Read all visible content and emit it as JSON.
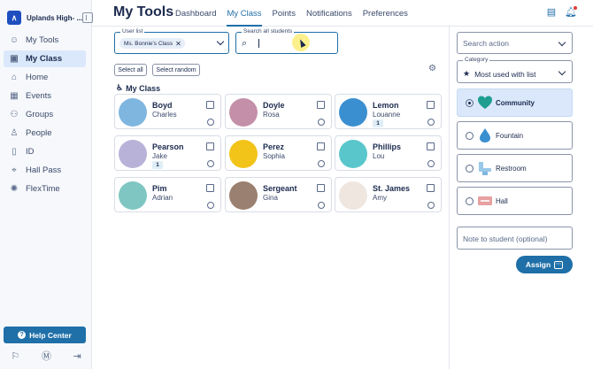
{
  "sidebar": {
    "school_name": "Uplands High- ...",
    "items": [
      {
        "label": "My Tools",
        "icon": "smiley-icon",
        "active": false
      },
      {
        "label": "My Class",
        "icon": "id-card-icon",
        "active": true
      },
      {
        "label": "Home",
        "icon": "home-icon",
        "active": false
      },
      {
        "label": "Events",
        "icon": "calendar-icon",
        "active": false
      },
      {
        "label": "Groups",
        "icon": "group-icon",
        "active": false
      },
      {
        "label": "People",
        "icon": "person-icon",
        "active": false
      },
      {
        "label": "ID",
        "icon": "id-icon",
        "active": false
      },
      {
        "label": "Hall Pass",
        "icon": "pass-icon",
        "active": false
      },
      {
        "label": "FlexTime",
        "icon": "flex-icon",
        "active": false
      }
    ],
    "help_label": "Help Center"
  },
  "header": {
    "title": "My Tools",
    "tabs": [
      "Dashboard",
      "My Class",
      "Points",
      "Notifications",
      "Preferences"
    ],
    "active_tab": "My Class"
  },
  "filters": {
    "user_list_legend": "User list",
    "user_list_chip": "Ms. Bonnie's Class",
    "search_legend": "Search all students",
    "select_all": "Select all",
    "select_random": "Select random"
  },
  "section_title": "My Class",
  "students": [
    {
      "last": "Boyd",
      "first": "Charles",
      "count": "",
      "avatar_color": "#7fb6e0"
    },
    {
      "last": "Doyle",
      "first": "Rosa",
      "count": "",
      "avatar_color": "#c48fa8"
    },
    {
      "last": "Lemon",
      "first": "Louanne",
      "count": "1",
      "avatar_color": "#3a8fd0"
    },
    {
      "last": "Pearson",
      "first": "Jake",
      "count": "1",
      "avatar_color": "#b9b2d8"
    },
    {
      "last": "Perez",
      "first": "Sophia",
      "count": "",
      "avatar_color": "#f2c318"
    },
    {
      "last": "Phillips",
      "first": "Lou",
      "count": "",
      "avatar_color": "#59c6cc"
    },
    {
      "last": "Pim",
      "first": "Adrian",
      "count": "",
      "avatar_color": "#7fc6c2"
    },
    {
      "last": "Sergeant",
      "first": "Gina",
      "count": "",
      "avatar_color": "#9a8070"
    },
    {
      "last": "St. James",
      "first": "Amy",
      "count": "",
      "avatar_color": "#efe6e0"
    }
  ],
  "right_panel": {
    "search_action_placeholder": "Search action",
    "category_legend": "Category",
    "category_value": "Most used with list",
    "locations": [
      {
        "label": "Community",
        "icon": "heart-icon",
        "selected": true,
        "color": "#1f9e8f"
      },
      {
        "label": "Fountain",
        "icon": "water-drop-icon",
        "selected": false,
        "color": "#3a8fd0"
      },
      {
        "label": "Restroom",
        "icon": "toilet-icon",
        "selected": false,
        "color": "#9ac8e8"
      },
      {
        "label": "Hall",
        "icon": "hall-sign-icon",
        "selected": false,
        "color": "#e8a0a0"
      }
    ],
    "note_placeholder": "Note to student (optional)",
    "assign_label": "Assign"
  }
}
